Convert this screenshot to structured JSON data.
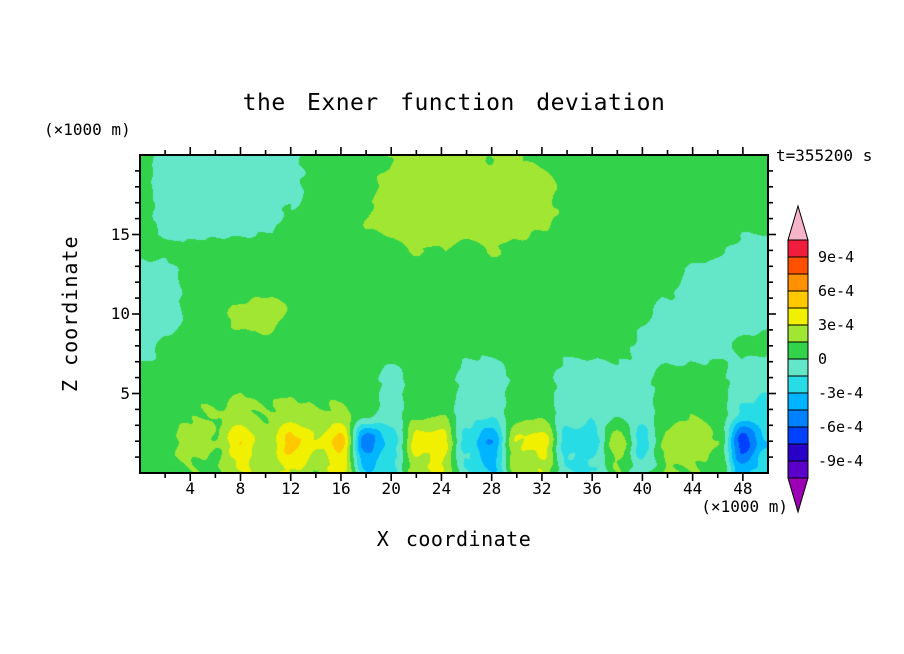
{
  "figure": {
    "title": "the Exner function deviation",
    "time_label": "t=355200 s",
    "x_axis": {
      "label": "X coordinate",
      "unit_label": "(×1000 m)",
      "range": [
        0,
        50
      ],
      "tick_labels": [
        4,
        8,
        12,
        16,
        20,
        24,
        28,
        32,
        36,
        40,
        44,
        48
      ],
      "minor_step": 2
    },
    "z_axis": {
      "label": "Z coordinate",
      "unit_label": "(×1000 m)",
      "range": [
        0,
        20
      ],
      "tick_labels": [
        5,
        10,
        15
      ],
      "minor_step": 1
    }
  },
  "colorbar": {
    "labels": [
      "9e-4",
      "6e-4",
      "3e-4",
      "0",
      "-3e-4",
      "-6e-4",
      "-9e-4"
    ]
  },
  "chart_data": {
    "type": "heatmap",
    "title": "the Exner function deviation",
    "xlabel": "X coordinate (×1000 m)",
    "ylabel": "Z coordinate (×1000 m)",
    "time": "t=355200 s",
    "x_range": [
      0,
      50
    ],
    "z_range": [
      0,
      20
    ],
    "value_unit": "all levels and grid values are in multiples of 1e-4",
    "levels_1e4": [
      -10.5,
      -9,
      -7.5,
      -6,
      -4.5,
      -3,
      -1.5,
      0,
      1.5,
      3,
      4.5,
      6,
      7.5,
      9,
      10.5
    ],
    "colors": [
      "#9b00b4",
      "#5a00c8",
      "#2800c8",
      "#0041ff",
      "#0082ff",
      "#00b4ff",
      "#28dce6",
      "#64e6c8",
      "#32d24b",
      "#a0e632",
      "#f0f000",
      "#ffc800",
      "#ff9100",
      "#ff5000",
      "#f01e3c",
      "#f5b4c8"
    ],
    "grid": {
      "x": [
        0,
        2,
        4,
        6,
        8,
        10,
        12,
        14,
        16,
        18,
        20,
        22,
        24,
        26,
        28,
        30,
        32,
        34,
        36,
        38,
        40,
        42,
        44,
        46,
        48,
        50
      ],
      "z": [
        20,
        18,
        16,
        14,
        12,
        10,
        8,
        6,
        4,
        2,
        0
      ],
      "values": [
        [
          0.5,
          -0.3,
          -1.0,
          -1.0,
          -0.8,
          -0.5,
          -0.2,
          0.3,
          0.8,
          1.0,
          1.5,
          1.8,
          1.8,
          1.8,
          1.5,
          1.5,
          1.3,
          1.0,
          0.5,
          0.3,
          0.3,
          0.3,
          0.3,
          0.3,
          0.2,
          0.2
        ],
        [
          0.5,
          -0.5,
          -1.2,
          -1.2,
          -1.0,
          -0.8,
          -0.3,
          0.3,
          0.8,
          1.2,
          1.8,
          2.0,
          2.2,
          2.2,
          2.0,
          2.0,
          1.8,
          1.2,
          0.8,
          0.5,
          0.5,
          0.5,
          0.5,
          0.5,
          0.3,
          0.3
        ],
        [
          0.3,
          -0.3,
          -0.8,
          -0.8,
          -0.5,
          -0.3,
          0.2,
          0.5,
          1.0,
          1.5,
          2.0,
          2.3,
          2.3,
          2.3,
          2.2,
          2.0,
          1.8,
          1.3,
          1.0,
          0.8,
          0.5,
          0.5,
          0.3,
          0.3,
          0.3,
          0.3
        ],
        [
          0.3,
          0.2,
          0.2,
          0.3,
          0.3,
          0.5,
          0.5,
          0.5,
          0.8,
          1.0,
          1.2,
          1.5,
          1.5,
          1.3,
          1.5,
          1.3,
          1.0,
          0.8,
          0.8,
          0.8,
          0.5,
          0.3,
          0.3,
          0.2,
          -0.2,
          -0.3
        ],
        [
          -0.8,
          -0.5,
          0.2,
          0.5,
          0.8,
          1.0,
          0.8,
          0.5,
          0.5,
          0.8,
          0.8,
          0.5,
          0.5,
          0.3,
          0.5,
          0.5,
          0.3,
          0.3,
          0.5,
          0.3,
          0.2,
          0.2,
          -0.3,
          -0.8,
          -1.0,
          -1.0
        ],
        [
          -1.2,
          -0.8,
          0.3,
          1.0,
          1.8,
          2.0,
          1.5,
          0.5,
          0.5,
          1.0,
          1.5,
          0.8,
          0.3,
          0.3,
          0.3,
          0.5,
          0.3,
          0.2,
          0.3,
          0.2,
          0.2,
          -0.3,
          -0.5,
          -0.8,
          -0.8,
          -0.5
        ],
        [
          -0.5,
          0.2,
          0.5,
          0.8,
          1.2,
          1.2,
          0.8,
          0.5,
          0.5,
          0.8,
          0.8,
          0.5,
          0.3,
          0.3,
          0.3,
          0.3,
          0.3,
          0.2,
          0.3,
          0.2,
          -0.2,
          -0.5,
          -0.5,
          -0.3,
          0.2,
          0.3
        ],
        [
          0.3,
          0.5,
          0.8,
          1.0,
          1.0,
          1.0,
          0.8,
          0.8,
          0.5,
          0.3,
          -0.3,
          0.3,
          0.5,
          -0.3,
          -0.5,
          0.3,
          0.5,
          -0.3,
          -0.5,
          -0.3,
          -0.3,
          0.3,
          0.5,
          0.3,
          -0.5,
          -0.8
        ],
        [
          0.5,
          0.8,
          1.2,
          1.5,
          1.8,
          1.5,
          1.8,
          1.5,
          1.8,
          1.0,
          -0.8,
          0.8,
          1.2,
          -0.8,
          -1.0,
          0.8,
          1.0,
          -0.8,
          -1.0,
          -0.5,
          -0.8,
          0.8,
          1.2,
          0.8,
          -1.5,
          -2.0
        ],
        [
          0.8,
          1.0,
          2.0,
          1.5,
          4.5,
          2.0,
          4.8,
          3.0,
          5.0,
          -5.5,
          -2.5,
          3.5,
          4.0,
          -2.0,
          -4.5,
          3.0,
          3.8,
          -2.0,
          -2.5,
          2.5,
          -2.0,
          2.0,
          2.5,
          1.5,
          -6.5,
          -3.0
        ],
        [
          0.5,
          0.8,
          1.5,
          1.2,
          3.0,
          1.5,
          3.5,
          2.0,
          3.5,
          -3.0,
          -1.5,
          2.5,
          3.0,
          -1.5,
          -3.0,
          2.0,
          2.5,
          -1.5,
          -1.5,
          1.5,
          -1.0,
          1.5,
          1.8,
          1.0,
          -4.0,
          -2.0
        ]
      ]
    }
  }
}
